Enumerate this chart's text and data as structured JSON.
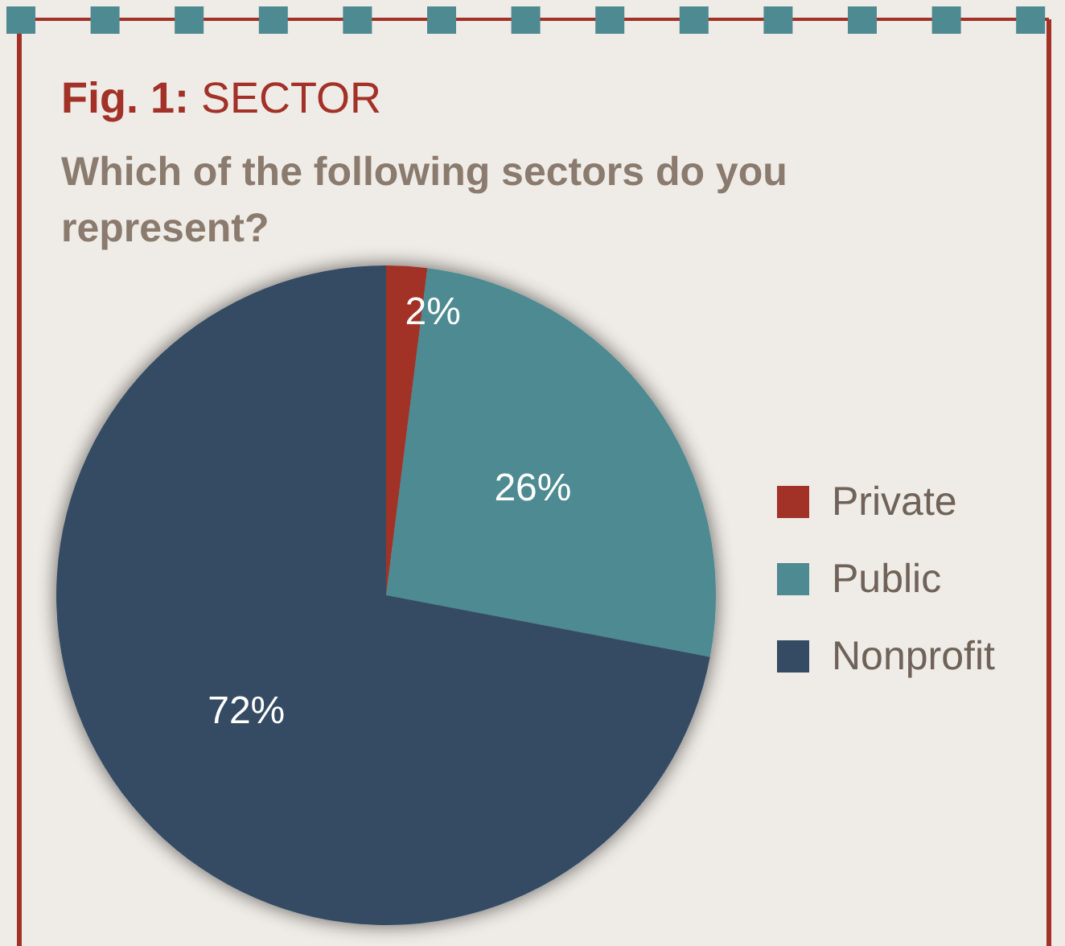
{
  "chart_data": {
    "type": "pie",
    "title": "Fig. 1: SECTOR",
    "subtitle": "Which of the following sectors do you represent?",
    "categories": [
      "Private",
      "Public",
      "Nonprofit"
    ],
    "values": [
      2,
      26,
      72
    ],
    "colors": [
      "#a23227",
      "#4e8a91",
      "#344b63"
    ],
    "value_labels": [
      "2%",
      "26%",
      "72%"
    ],
    "legend": "right"
  }
}
